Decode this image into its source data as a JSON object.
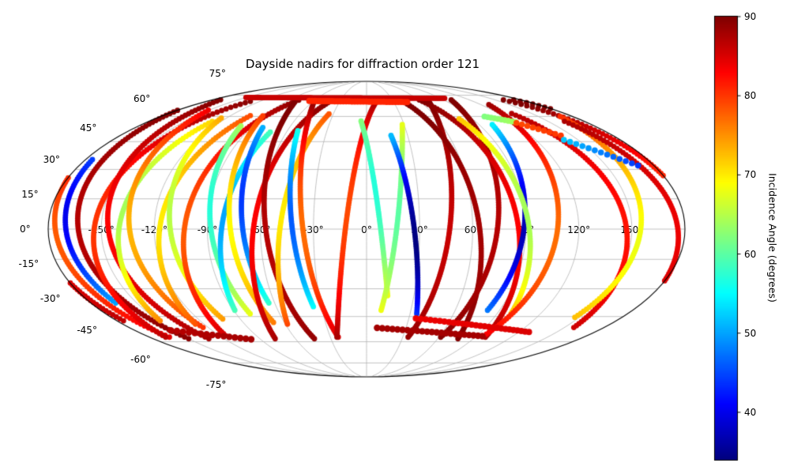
{
  "chart_data": {
    "type": "scatter",
    "projection": "mollweide",
    "title": "Dayside nadirs for diffraction order 121",
    "grid": {
      "on": true,
      "lat_tick_values": [
        75,
        60,
        45,
        30,
        15,
        0,
        -15,
        -30,
        -45,
        -60,
        -75
      ],
      "lat_tick_labels": [
        "75°",
        "60°",
        "45°",
        "30°",
        "15°",
        "0°",
        "-15°",
        "-30°",
        "-45°",
        "-60°",
        "-75°"
      ],
      "lon_tick_values": [
        -150,
        -120,
        -90,
        -60,
        -30,
        0,
        30,
        60,
        90,
        120,
        150
      ],
      "lon_tick_labels": [
        "-150°",
        "-120°",
        "-90°",
        "-60°",
        "-30°",
        "0°",
        "30°",
        "60°",
        "90°",
        "120°",
        "150°"
      ]
    },
    "colorbar": {
      "label": "Incidence Angle (degrees)",
      "tick_values": [
        90,
        80,
        70,
        60,
        50,
        40
      ],
      "tick_labels": [
        "90",
        "80",
        "70",
        "60",
        "50",
        "40"
      ],
      "vmin": 34,
      "vmax": 90,
      "colormap": "jet",
      "position": "right"
    },
    "orbit_inclination_deg": 98,
    "track_fields": [
      "equator_lon_deg",
      "min_incidence_deg",
      "u_of_min_deg",
      "u_start_deg",
      "u_end_deg",
      "incidence_rise_scale_deg",
      "lean_dir"
    ],
    "tracks": [
      [
        -176,
        78,
        -5,
        -58,
        74,
        80,
        1
      ],
      [
        -170,
        40,
        8,
        -38,
        36,
        120,
        1
      ],
      [
        -163,
        87,
        0,
        -59,
        74,
        85,
        1
      ],
      [
        -154,
        80,
        0,
        -58,
        73,
        80,
        -1
      ],
      [
        -146,
        83,
        0,
        -59,
        74,
        82,
        1
      ],
      [
        -140,
        64,
        12,
        -48,
        58,
        100,
        -1
      ],
      [
        -134,
        73,
        0,
        -52,
        66,
        90,
        1
      ],
      [
        -117,
        70,
        5,
        -50,
        62,
        95,
        -1
      ],
      [
        -111,
        65,
        8,
        -47,
        60,
        100,
        1
      ],
      [
        -103,
        78,
        0,
        -57,
        73,
        80,
        -1
      ],
      [
        -88,
        57,
        12,
        -44,
        56,
        110,
        1
      ],
      [
        -82,
        50,
        5,
        -42,
        52,
        115,
        -1
      ],
      [
        -77,
        69,
        0,
        -49,
        62,
        95,
        1
      ],
      [
        -70,
        44,
        18,
        -38,
        54,
        115,
        1
      ],
      [
        -64,
        83,
        0,
        -59,
        74,
        82,
        -1
      ],
      [
        -57,
        87,
        -8,
        -59,
        73,
        85,
        1
      ],
      [
        -49,
        70,
        8,
        -50,
        63,
        95,
        -1
      ],
      [
        -42,
        46,
        5,
        -40,
        52,
        115,
        1
      ],
      [
        -36,
        77,
        0,
        -58,
        74,
        80,
        1
      ],
      [
        -12,
        79,
        8,
        -58,
        74,
        80,
        -1
      ],
      [
        8,
        57,
        22,
        -34,
        58,
        110,
        1
      ],
      [
        17,
        60,
        8,
        -42,
        56,
        110,
        -1
      ],
      [
        27,
        34,
        -5,
        -44,
        50,
        110,
        1
      ],
      [
        47,
        86,
        0,
        -58,
        74,
        85,
        -1
      ],
      [
        64,
        88,
        0,
        -59,
        73,
        85,
        1
      ],
      [
        74,
        87,
        4,
        -58,
        74,
        85,
        -1
      ],
      [
        86,
        83,
        0,
        -58,
        74,
        82,
        1
      ],
      [
        89,
        37,
        0,
        -42,
        56,
        110,
        -1
      ],
      [
        92,
        64,
        8,
        -44,
        60,
        105,
        1
      ],
      [
        108,
        77,
        -4,
        -56,
        70,
        85,
        -1
      ],
      [
        147,
        82,
        0,
        -52,
        64,
        90,
        1
      ],
      [
        155,
        68,
        -8,
        -46,
        62,
        100,
        -1
      ],
      [
        176,
        84,
        0,
        -48,
        58,
        90,
        1
      ]
    ],
    "chain_fields": [
      "lon_start_deg",
      "lon_end_deg",
      "lat_start_deg",
      "lat_end_deg",
      "incidence_start_deg",
      "incidence_end_deg",
      "step_deg",
      "dot_radius_px"
    ],
    "chains": [
      [
        -150,
        95,
        73.2,
        72.6,
        86,
        86,
        2.0,
        3.4
      ],
      [
        -65,
        45,
        70.6,
        69.8,
        81,
        81,
        3.2,
        4.0
      ],
      [
        8,
        95,
        -51.5,
        -56.5,
        88,
        88,
        4.0,
        4.2
      ],
      [
        35,
        128,
        -46,
        -54,
        84,
        85,
        3.6,
        4.0
      ],
      [
        -152,
        -98,
        -53,
        -58.5,
        87,
        88,
        4.0,
        4.2
      ],
      [
        103,
        122,
        60,
        56.5,
        62,
        64,
        2.2,
        3.8
      ],
      [
        122,
        142,
        56,
        48.5,
        79,
        80,
        2.4,
        3.8
      ],
      [
        140,
        170,
        46,
        32,
        52,
        44,
        2.5,
        3.8
      ]
    ],
    "style_colors": {
      "background": "#ffffff",
      "grid_line": "#b3b3b3",
      "map_outline": "#000000",
      "text": "#000000"
    }
  }
}
